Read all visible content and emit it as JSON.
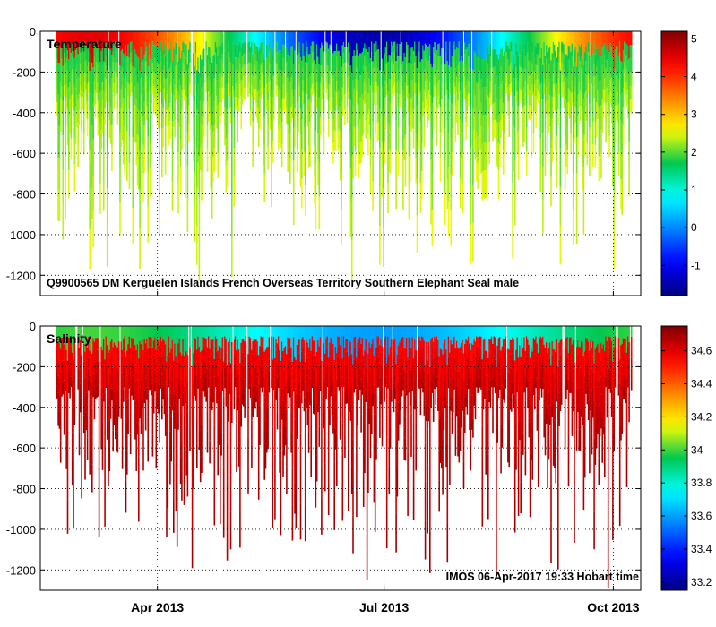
{
  "chart_data": [
    {
      "type": "heatmap",
      "title": "Temperature",
      "variable": "temperature",
      "annotation": "Q9900565 DM Kerguelen Islands French Overseas Territory Southern Elephant Seal  male",
      "ylim": [
        -1300,
        0
      ],
      "yticks": [
        0,
        -200,
        -400,
        -600,
        -800,
        -1000,
        -1200
      ],
      "ytick_labels": [
        "0",
        "-200",
        "-400",
        "-600",
        "-800",
        "-1000",
        "-1200"
      ],
      "xrange": [
        "2013-02-13",
        "2013-10-12"
      ],
      "xticks": [
        "2013-04-01",
        "2013-07-01",
        "2013-10-01"
      ],
      "xtick_labels": [
        "Apr 2013",
        "Jul 2013",
        "Oct 2013"
      ],
      "grid": true,
      "colorbar": {
        "range": [
          -1.8,
          5.2
        ],
        "ticks": [
          -1,
          0,
          1,
          2,
          3,
          4,
          5
        ],
        "tick_labels": [
          "-1",
          "0",
          "1",
          "2",
          "3",
          "4",
          "5"
        ]
      },
      "profile_depth_range": [
        -1300,
        -300
      ],
      "approx_profile_deep_values": [
        1.5,
        2.5
      ],
      "approx_profile_surface_values": [
        -1.5,
        4.5
      ]
    },
    {
      "type": "heatmap",
      "title": "Salinity",
      "variable": "salinity",
      "annotation": "IMOS 06-Apr-2017 19:33 Hobart time",
      "ylim": [
        -1300,
        0
      ],
      "yticks": [
        0,
        -200,
        -400,
        -600,
        -800,
        -1000,
        -1200
      ],
      "ytick_labels": [
        "0",
        "-200",
        "-400",
        "-600",
        "-800",
        "-1000",
        "-1200"
      ],
      "xrange": [
        "2013-02-13",
        "2013-10-12"
      ],
      "xticks": [
        "2013-04-01",
        "2013-07-01",
        "2013-10-01"
      ],
      "xtick_labels": [
        "Apr 2013",
        "Jul 2013",
        "Oct 2013"
      ],
      "grid": true,
      "colorbar": {
        "range": [
          33.15,
          34.75
        ],
        "ticks": [
          33.2,
          33.4,
          33.6,
          33.8,
          34,
          34.2,
          34.4,
          34.6
        ],
        "tick_labels": [
          "33.2",
          "33.4",
          "33.6",
          "33.8",
          "34",
          "34.2",
          "34.4",
          "34.6"
        ]
      },
      "profile_depth_range": [
        -1300,
        -300
      ],
      "approx_profile_deep_values": [
        34.5,
        34.7
      ],
      "approx_profile_surface_values": [
        33.6,
        34.0
      ]
    }
  ]
}
